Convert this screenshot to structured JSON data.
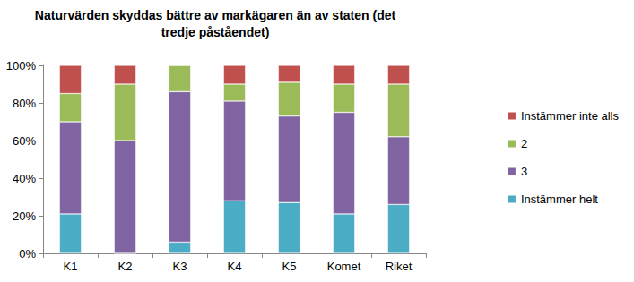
{
  "chart_data": {
    "type": "bar",
    "title": "Naturvärden skyddas bättre av markägaren än av staten (det\ntredje påståendet)",
    "categories": [
      "K1",
      "K2",
      "K3",
      "K4",
      "K5",
      "Komet",
      "Riket"
    ],
    "series": [
      {
        "name": "Instämmer helt",
        "color": "#4BACC6",
        "values": [
          21,
          0,
          6,
          28,
          27,
          21,
          26
        ]
      },
      {
        "name": "3",
        "color": "#8064A2",
        "values": [
          49,
          60,
          80,
          53,
          46,
          54,
          36
        ]
      },
      {
        "name": "2",
        "color": "#9BBB59",
        "values": [
          15,
          30,
          14,
          9,
          18,
          15,
          28
        ]
      },
      {
        "name": "Instämmer inte alls",
        "color": "#C0504D",
        "values": [
          15,
          10,
          0,
          10,
          9,
          10,
          10
        ]
      }
    ],
    "stacked": true,
    "ylim": [
      0,
      100
    ],
    "yticks": [
      {
        "value": 0,
        "label": "0%"
      },
      {
        "value": 20,
        "label": "20%"
      },
      {
        "value": 40,
        "label": "40%"
      },
      {
        "value": 60,
        "label": "60%"
      },
      {
        "value": 80,
        "label": "80%"
      },
      {
        "value": 100,
        "label": "100%"
      }
    ],
    "grid": false,
    "legend": "right"
  }
}
